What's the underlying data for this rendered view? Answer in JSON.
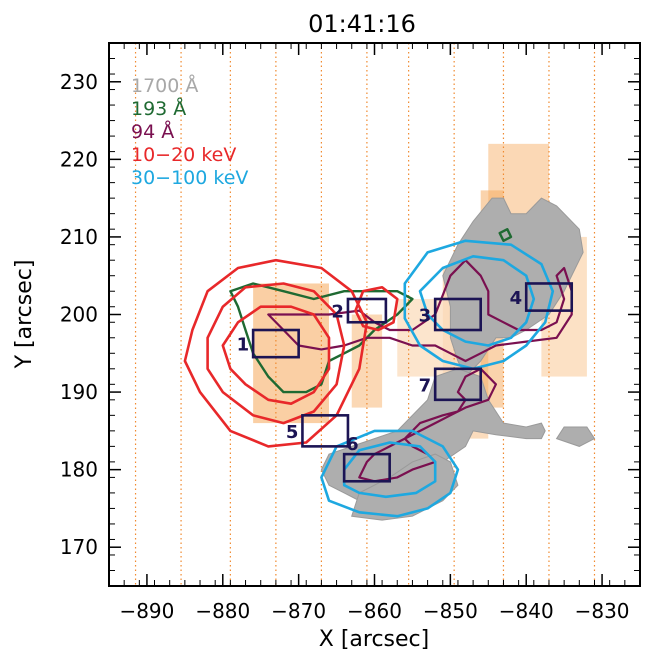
{
  "chart_data": {
    "type": "contour_overlay",
    "title": "01:41:16",
    "xlabel": "X [arcsec]",
    "ylabel": "Y [arcsec]",
    "xlim": [
      -895,
      -825
    ],
    "ylim": [
      165,
      235
    ],
    "xticks": [
      -890,
      -880,
      -870,
      -860,
      -850,
      -840,
      -830
    ],
    "xtick_labels": [
      "−890",
      "−880",
      "−870",
      "−860",
      "−850",
      "−840",
      "−830"
    ],
    "yticks": [
      170,
      180,
      190,
      200,
      210,
      220,
      230
    ],
    "ytick_labels": [
      "170",
      "180",
      "190",
      "200",
      "210",
      "220",
      "230"
    ],
    "legend_position": "top-left",
    "legend": [
      {
        "label": "1700 Å",
        "color": "#a8a8a8"
      },
      {
        "label": "193 Å",
        "color": "#1f6a32"
      },
      {
        "label": "94 Å",
        "color": "#7a1050"
      },
      {
        "label": "10−20 keV",
        "color": "#e8282a"
      },
      {
        "label": "30−100 keV",
        "color": "#1ea8e0"
      }
    ],
    "slit_lines_x": [
      -891.5,
      -885.5,
      -879,
      -873,
      -867,
      -861,
      -855.5,
      -849.5,
      -843,
      -837,
      -831
    ],
    "background_map": [
      {
        "x0": -876,
        "x1": -866,
        "y0": 186,
        "y1": 204,
        "level": 0.55
      },
      {
        "x0": -863,
        "x1": -859,
        "y0": 188,
        "y1": 200,
        "level": 0.45
      },
      {
        "x0": -851,
        "x1": -845,
        "y0": 184,
        "y1": 206,
        "level": 0.4
      },
      {
        "x0": -846,
        "x1": -843,
        "y0": 188,
        "y1": 216,
        "level": 0.5
      },
      {
        "x0": -845,
        "x1": -837,
        "y0": 200,
        "y1": 222,
        "level": 0.45
      },
      {
        "x0": -838,
        "x1": -832,
        "y0": 192,
        "y1": 210,
        "level": 0.35
      },
      {
        "x0": -857,
        "x1": -851,
        "y0": 192,
        "y1": 202,
        "level": 0.3
      }
    ],
    "boxes": [
      {
        "label": "1",
        "x0": -876,
        "x1": -870,
        "y0": 194.5,
        "y1": 198
      },
      {
        "label": "2",
        "x0": -863.5,
        "x1": -858.5,
        "y0": 199,
        "y1": 202
      },
      {
        "label": "3",
        "x0": -852,
        "x1": -846,
        "y0": 198,
        "y1": 202
      },
      {
        "label": "4",
        "x0": -840,
        "x1": -834,
        "y0": 200.5,
        "y1": 204
      },
      {
        "label": "5",
        "x0": -869.5,
        "x1": -863.5,
        "y0": 183,
        "y1": 187
      },
      {
        "label": "6",
        "x0": -864,
        "x1": -858,
        "y0": 178.5,
        "y1": 182
      },
      {
        "label": "7",
        "x0": -852,
        "x1": -846,
        "y0": 189,
        "y1": 193
      }
    ],
    "contours": {
      "aia1700": [
        [
          [
            -849,
            209
          ],
          [
            -847,
            212
          ],
          [
            -844.5,
            215
          ],
          [
            -843,
            215
          ],
          [
            -842,
            213
          ],
          [
            -840,
            213
          ],
          [
            -838,
            215
          ],
          [
            -836,
            214
          ],
          [
            -833,
            211
          ],
          [
            -832.5,
            208
          ],
          [
            -834,
            205
          ],
          [
            -835,
            203
          ],
          [
            -837,
            200
          ],
          [
            -840,
            198
          ],
          [
            -842,
            197
          ],
          [
            -844,
            197
          ],
          [
            -846,
            194
          ],
          [
            -848,
            192
          ],
          [
            -849,
            194
          ],
          [
            -850,
            197
          ],
          [
            -850,
            201
          ],
          [
            -851,
            205
          ]
        ],
        [
          [
            -852,
            192
          ],
          [
            -849,
            193
          ],
          [
            -846,
            192
          ],
          [
            -845,
            189
          ],
          [
            -843,
            186
          ],
          [
            -840,
            185.5
          ],
          [
            -838,
            186
          ],
          [
            -837.5,
            185
          ],
          [
            -838,
            184
          ],
          [
            -840,
            184
          ],
          [
            -844,
            184.5
          ],
          [
            -847,
            185
          ],
          [
            -848,
            183
          ],
          [
            -851,
            181
          ],
          [
            -854,
            180
          ],
          [
            -857,
            179
          ],
          [
            -860,
            178
          ],
          [
            -862,
            176
          ],
          [
            -864,
            177
          ],
          [
            -866,
            178
          ],
          [
            -867,
            180
          ],
          [
            -866,
            182
          ],
          [
            -863,
            183
          ],
          [
            -860,
            184
          ],
          [
            -857,
            185
          ],
          [
            -855,
            187
          ],
          [
            -853,
            189
          ]
        ],
        [
          [
            -863,
            174
          ],
          [
            -859,
            173.5
          ],
          [
            -855,
            174
          ],
          [
            -851,
            176
          ],
          [
            -849,
            178
          ],
          [
            -850,
            181
          ],
          [
            -852,
            182
          ],
          [
            -855,
            181
          ],
          [
            -858,
            179
          ],
          [
            -862,
            177
          ]
        ],
        [
          [
            -836,
            184
          ],
          [
            -833,
            183
          ],
          [
            -831,
            184
          ],
          [
            -832,
            185.5
          ],
          [
            -835,
            185.5
          ]
        ]
      ],
      "aia193": [
        [
          [
            -879,
            203
          ],
          [
            -876,
            204
          ],
          [
            -872,
            203
          ],
          [
            -868,
            202
          ],
          [
            -864,
            203
          ],
          [
            -860,
            203
          ],
          [
            -857,
            203
          ],
          [
            -855,
            202
          ],
          [
            -857,
            200
          ],
          [
            -860,
            198
          ],
          [
            -862,
            196
          ],
          [
            -864,
            195
          ],
          [
            -866,
            194
          ],
          [
            -867,
            191
          ],
          [
            -869,
            190
          ],
          [
            -872,
            190
          ],
          [
            -874,
            192
          ],
          [
            -876,
            195
          ],
          [
            -877,
            198
          ],
          [
            -878,
            201
          ]
        ],
        [
          [
            -843.5,
            210.5
          ],
          [
            -842.5,
            211
          ],
          [
            -842,
            210
          ],
          [
            -843,
            209.5
          ]
        ]
      ],
      "aia94": [
        [
          [
            -874,
            200
          ],
          [
            -870,
            200
          ],
          [
            -866,
            200
          ],
          [
            -862,
            200.5
          ],
          [
            -860,
            199
          ],
          [
            -858,
            198
          ],
          [
            -855,
            198
          ],
          [
            -852,
            200
          ],
          [
            -850,
            205
          ],
          [
            -848,
            207
          ],
          [
            -846,
            205
          ],
          [
            -845,
            203
          ],
          [
            -845,
            200
          ],
          [
            -843,
            199
          ],
          [
            -841,
            198
          ],
          [
            -838,
            198
          ],
          [
            -836,
            199
          ],
          [
            -835,
            202
          ],
          [
            -836,
            205
          ],
          [
            -835,
            206
          ],
          [
            -834,
            203
          ],
          [
            -834,
            200
          ],
          [
            -836,
            197
          ],
          [
            -840,
            196.5
          ],
          [
            -844,
            196
          ],
          [
            -846,
            195
          ],
          [
            -848,
            194
          ],
          [
            -850,
            195
          ],
          [
            -852,
            196
          ],
          [
            -855,
            196
          ],
          [
            -858,
            197
          ],
          [
            -861,
            197
          ],
          [
            -864,
            196
          ],
          [
            -867,
            195.5
          ],
          [
            -870,
            196
          ],
          [
            -872,
            198
          ]
        ],
        [
          [
            -846,
            193
          ],
          [
            -844,
            191
          ],
          [
            -845,
            189
          ],
          [
            -848,
            188
          ],
          [
            -850,
            187
          ],
          [
            -852,
            186
          ],
          [
            -854,
            185
          ],
          [
            -858,
            183
          ],
          [
            -860,
            182
          ],
          [
            -861,
            181
          ],
          [
            -862,
            179
          ],
          [
            -860,
            178.5
          ],
          [
            -857,
            179
          ],
          [
            -855,
            180
          ],
          [
            -852,
            181
          ],
          [
            -853,
            182
          ],
          [
            -855,
            183
          ],
          [
            -856,
            184
          ],
          [
            -854,
            186
          ],
          [
            -851,
            187
          ],
          [
            -849,
            187.5
          ],
          [
            -848,
            189
          ],
          [
            -849,
            190
          ],
          [
            -848,
            192
          ]
        ]
      ],
      "hxr_low": [
        [
          [
            -880,
            196
          ],
          [
            -878,
            199
          ],
          [
            -875,
            201
          ],
          [
            -871,
            201
          ],
          [
            -868,
            200
          ],
          [
            -866,
            197
          ],
          [
            -866,
            193
          ],
          [
            -868,
            190
          ],
          [
            -871,
            188.5
          ],
          [
            -874,
            189
          ],
          [
            -877,
            191
          ],
          [
            -879,
            193
          ]
        ],
        [
          [
            -882,
            197
          ],
          [
            -880,
            201
          ],
          [
            -877,
            203.5
          ],
          [
            -872,
            204
          ],
          [
            -868,
            203
          ],
          [
            -865,
            200
          ],
          [
            -864,
            196
          ],
          [
            -865,
            191
          ],
          [
            -868,
            187.5
          ],
          [
            -872,
            186
          ],
          [
            -876,
            187
          ],
          [
            -880,
            190
          ],
          [
            -882,
            193
          ]
        ],
        [
          [
            -884,
            198
          ],
          [
            -882,
            203
          ],
          [
            -878,
            206
          ],
          [
            -873,
            207
          ],
          [
            -867,
            206
          ],
          [
            -863,
            203
          ],
          [
            -861,
            199
          ],
          [
            -862,
            193
          ],
          [
            -865,
            187
          ],
          [
            -869,
            183.5
          ],
          [
            -874,
            183
          ],
          [
            -879,
            185
          ],
          [
            -883,
            190
          ],
          [
            -885,
            194
          ]
        ],
        [
          [
            -862.5,
            200.5
          ],
          [
            -861.5,
            203
          ],
          [
            -859,
            203.5
          ],
          [
            -857,
            202
          ],
          [
            -857.5,
            199
          ],
          [
            -859.5,
            198
          ],
          [
            -861.5,
            198.5
          ]
        ]
      ],
      "hxr_high": [
        [
          [
            -854,
            203
          ],
          [
            -851,
            206
          ],
          [
            -847,
            207.5
          ],
          [
            -843,
            207
          ],
          [
            -840,
            205
          ],
          [
            -839,
            202
          ],
          [
            -840,
            199
          ],
          [
            -842,
            197
          ],
          [
            -845,
            196
          ],
          [
            -848,
            196.5
          ],
          [
            -851,
            198
          ],
          [
            -853,
            200
          ]
        ],
        [
          [
            -856,
            204
          ],
          [
            -853,
            208
          ],
          [
            -848,
            209.5
          ],
          [
            -842,
            209
          ],
          [
            -838,
            206.5
          ],
          [
            -836.5,
            203
          ],
          [
            -837.5,
            199
          ],
          [
            -840,
            196
          ],
          [
            -843,
            194
          ],
          [
            -847,
            193
          ],
          [
            -851,
            194
          ],
          [
            -854,
            196
          ],
          [
            -856,
            199.5
          ]
        ],
        [
          [
            -864,
            180
          ],
          [
            -862,
            182.5
          ],
          [
            -858,
            183.5
          ],
          [
            -854,
            183
          ],
          [
            -852,
            181
          ],
          [
            -852,
            178.5
          ],
          [
            -854.5,
            177
          ],
          [
            -858.5,
            176.5
          ],
          [
            -862,
            177
          ],
          [
            -864,
            178
          ]
        ],
        [
          [
            -867,
            179
          ],
          [
            -865,
            183
          ],
          [
            -860,
            185
          ],
          [
            -855,
            185
          ],
          [
            -851,
            183
          ],
          [
            -849,
            180
          ],
          [
            -850,
            177
          ],
          [
            -853,
            175
          ],
          [
            -857,
            174
          ],
          [
            -862,
            174.5
          ],
          [
            -866,
            176
          ]
        ]
      ]
    }
  }
}
